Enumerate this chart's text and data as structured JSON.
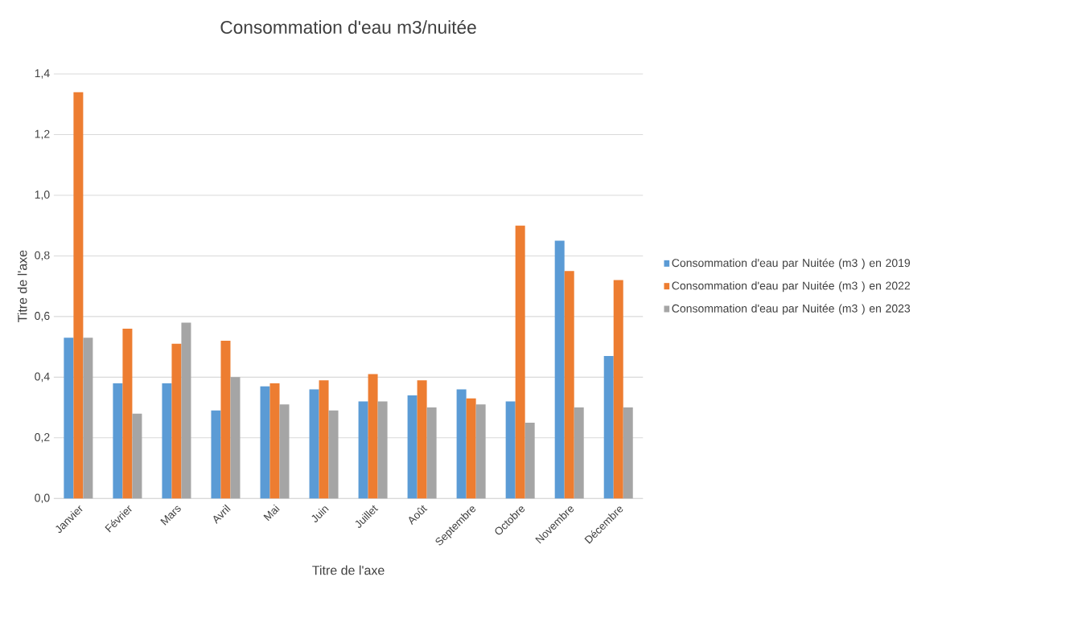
{
  "chart_data": {
    "type": "bar",
    "title": "Consommation d'eau m3/nuitée",
    "xlabel": "Titre de l'axe",
    "ylabel": "Titre de l'axe",
    "categories": [
      "Janvier",
      "Février",
      "Mars",
      "Avril",
      "Mai",
      "Juin",
      "Juillet",
      "Août",
      "Septembre",
      "Octobre",
      "Novembre",
      "Décembre"
    ],
    "series": [
      {
        "name": "Consommation d'eau par Nuitée (m3 ) en 2019",
        "color": "#5b9bd5",
        "values": [
          0.53,
          0.38,
          0.38,
          0.29,
          0.37,
          0.36,
          0.32,
          0.34,
          0.36,
          0.32,
          0.85,
          0.47
        ]
      },
      {
        "name": "Consommation d'eau par Nuitée (m3 ) en 2022",
        "color": "#ed7d31",
        "values": [
          1.34,
          0.56,
          0.51,
          0.52,
          0.38,
          0.39,
          0.41,
          0.39,
          0.33,
          0.9,
          0.75,
          0.72
        ]
      },
      {
        "name": "Consommation d'eau par Nuitée (m3 ) en 2023",
        "color": "#a5a5a5",
        "values": [
          0.53,
          0.28,
          0.58,
          0.4,
          0.31,
          0.29,
          0.32,
          0.3,
          0.31,
          0.25,
          0.3,
          0.3
        ]
      }
    ],
    "ylim": [
      0,
      1.4
    ],
    "yticks": [
      {
        "value": 0,
        "label": "0,0"
      },
      {
        "value": 0.2,
        "label": "0,2"
      },
      {
        "value": 0.4,
        "label": "0,4"
      },
      {
        "value": 0.6,
        "label": "0,6"
      },
      {
        "value": 0.8,
        "label": "0,8"
      },
      {
        "value": 1.0,
        "label": "1,0"
      },
      {
        "value": 1.2,
        "label": "1,2"
      },
      {
        "value": 1.4,
        "label": "1,4"
      }
    ],
    "grid": "y",
    "legend": "right"
  }
}
